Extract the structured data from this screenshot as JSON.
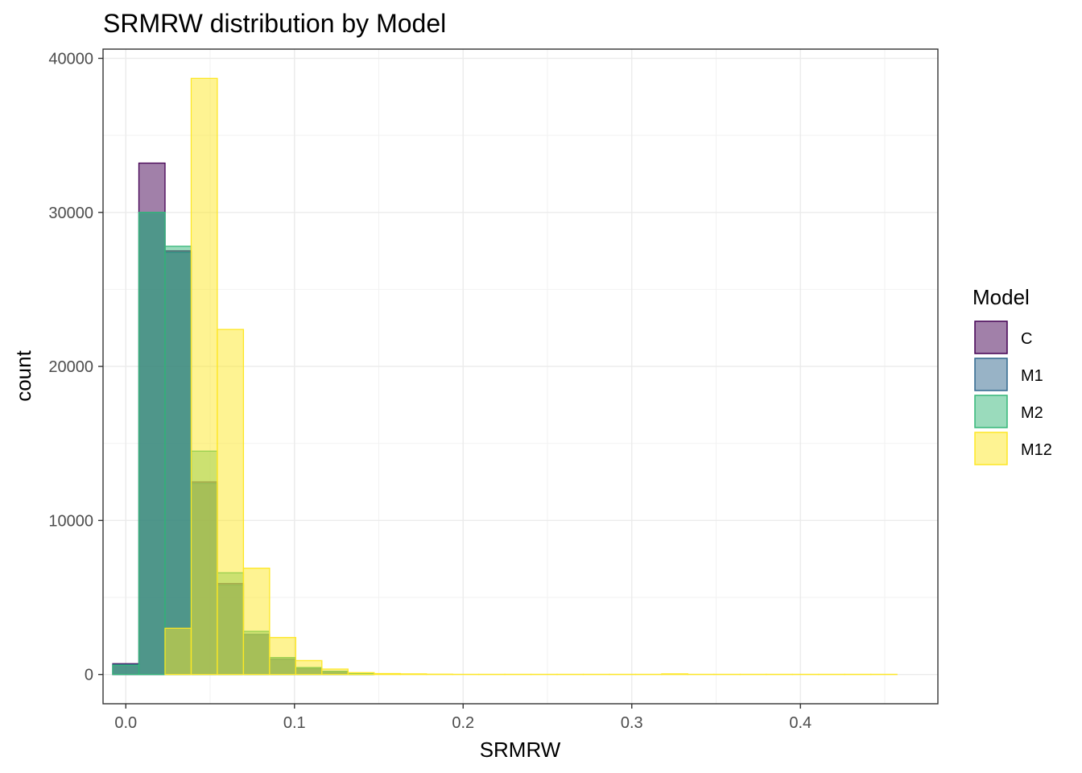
{
  "chart_data": {
    "type": "bar",
    "title": "SRMRW distribution by Model",
    "xlabel": "SRMRW",
    "ylabel": "count",
    "xlim": [
      -0.0135,
      0.4815
    ],
    "ylim": [
      -1900,
      40600
    ],
    "x_ticks": [
      0.0,
      0.1,
      0.2,
      0.3,
      0.4
    ],
    "x_tick_labels": [
      "0.0",
      "0.1",
      "0.2",
      "0.3",
      "0.4"
    ],
    "y_ticks": [
      0,
      10000,
      20000,
      30000,
      40000
    ],
    "y_tick_labels": [
      "0",
      "10000",
      "20000",
      "30000",
      "40000"
    ],
    "grid": true,
    "legend": {
      "title": "Model",
      "position": "right"
    },
    "bin_width": 0.0155,
    "bin_centers": [
      0.0,
      0.0155,
      0.031,
      0.0465,
      0.062,
      0.0775,
      0.093,
      0.1085,
      0.124,
      0.1395,
      0.155,
      0.1705,
      0.186,
      0.2015,
      0.217,
      0.2325,
      0.248,
      0.2635,
      0.279,
      0.2945,
      0.31,
      0.3255,
      0.341,
      0.3565,
      0.372,
      0.3875,
      0.403,
      0.4185,
      0.434,
      0.4495
    ],
    "series": [
      {
        "name": "C",
        "fill": "#440154",
        "outline": "#440154",
        "values": [
          700,
          33200,
          27500,
          12500,
          5900,
          2600,
          1000,
          400,
          200,
          50,
          0,
          0,
          0,
          0,
          0,
          0,
          0,
          0,
          0,
          0,
          0,
          0,
          0,
          0,
          0,
          0,
          0,
          0,
          0,
          0
        ]
      },
      {
        "name": "M1",
        "fill": "#31688E",
        "outline": "#31688E",
        "values": [
          650,
          30000,
          27400,
          12400,
          5800,
          2600,
          1000,
          400,
          200,
          50,
          0,
          0,
          0,
          0,
          0,
          0,
          0,
          0,
          0,
          0,
          0,
          0,
          0,
          0,
          0,
          0,
          0,
          0,
          0,
          0
        ]
      },
      {
        "name": "M2",
        "fill": "#35B779",
        "outline": "#35B779",
        "values": [
          600,
          30000,
          27800,
          14500,
          6600,
          2800,
          1100,
          450,
          200,
          60,
          0,
          0,
          0,
          0,
          0,
          0,
          0,
          0,
          0,
          0,
          0,
          0,
          0,
          0,
          0,
          0,
          0,
          0,
          0,
          0
        ]
      },
      {
        "name": "M12",
        "fill": "#FDE725",
        "outline": "#FDE725",
        "values": [
          0,
          0,
          3000,
          38700,
          22400,
          6900,
          2400,
          900,
          350,
          120,
          60,
          40,
          20,
          10,
          10,
          10,
          10,
          10,
          10,
          10,
          10,
          40,
          10,
          10,
          10,
          10,
          10,
          10,
          10,
          10
        ]
      }
    ]
  }
}
